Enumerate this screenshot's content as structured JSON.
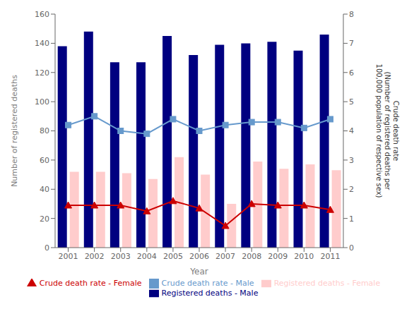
{
  "chart_data": {
    "type": "bar",
    "categories": [
      "2001",
      "2002",
      "2003",
      "2004",
      "2005",
      "2006",
      "2007",
      "2008",
      "2009",
      "2010",
      "2011"
    ],
    "series": [
      {
        "name": "Registered deaths - Male",
        "type": "bar",
        "color": "navy",
        "values": [
          138,
          148,
          127,
          127,
          145,
          132,
          139,
          140,
          141,
          135,
          146
        ]
      },
      {
        "name": "Registered deaths - Female",
        "type": "bar",
        "color": "#ffcccc",
        "values": [
          52,
          52,
          51,
          47,
          62,
          50,
          30,
          59,
          54,
          57,
          53
        ]
      },
      {
        "name": "Crude death rate - Male",
        "type": "line",
        "axis": "y2",
        "color": "#6699cc",
        "marker": "square",
        "values": [
          4.2,
          4.5,
          4.0,
          3.9,
          4.4,
          4.0,
          4.2,
          4.3,
          4.3,
          4.1,
          4.4
        ]
      },
      {
        "name": "Crude death rate - Female",
        "type": "line",
        "axis": "y2",
        "color": "#cc0000",
        "marker": "triangle",
        "values": [
          1.45,
          1.45,
          1.45,
          1.25,
          1.6,
          1.35,
          0.75,
          1.5,
          1.45,
          1.45,
          1.3
        ]
      }
    ],
    "xlabel": "Year",
    "ylabel": "Number of registered deaths",
    "y2label": "Crude death rate\n(Number of registered deaths per\n100,000 population of respective sex)",
    "ylim": [
      0,
      160
    ],
    "yticks": [
      0,
      20,
      40,
      60,
      80,
      100,
      120,
      140,
      160
    ],
    "y2lim": [
      0,
      8
    ],
    "y2ticks": [
      0,
      1,
      2,
      3,
      4,
      5,
      6,
      7,
      8
    ],
    "grid": false,
    "legend": "bottom"
  }
}
